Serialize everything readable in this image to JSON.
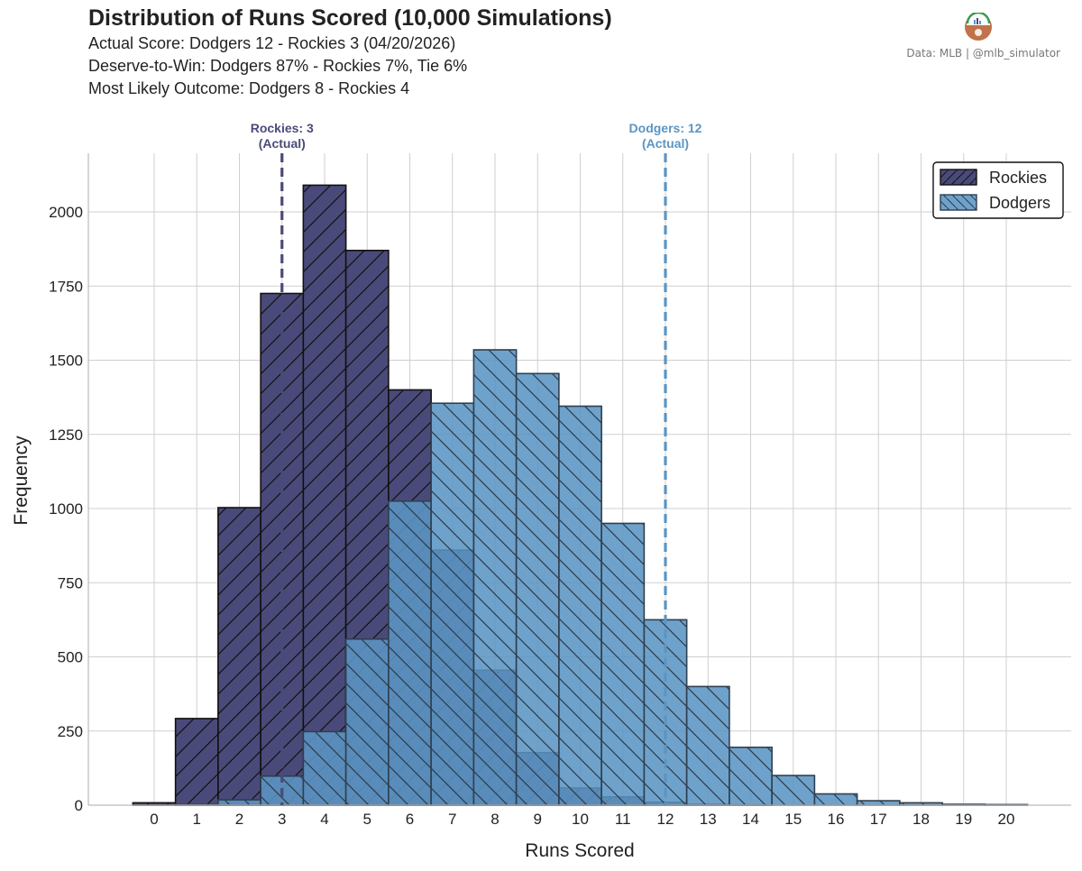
{
  "header": {
    "title": "Distribution of Runs Scored (10,000 Simulations)",
    "line1": "Actual Score: Dodgers 12 - Rockies 3  (04/20/2026)",
    "line2": "Deserve-to-Win: Dodgers 87% - Rockies 7%, Tie 6%",
    "line3": "Most Likely Outcome: Dodgers 8 - Rockies 4",
    "credit": "Data: MLB  |  @mlb_simulator"
  },
  "chart_data": {
    "type": "bar",
    "xlabel": "Runs Scored",
    "ylabel": "Frequency",
    "categories": [
      0,
      1,
      2,
      3,
      4,
      5,
      6,
      7,
      8,
      9,
      10,
      11,
      12,
      13,
      14,
      15,
      16,
      17,
      18,
      19,
      20
    ],
    "ylim": [
      0,
      2200
    ],
    "yticks": [
      0,
      250,
      500,
      750,
      1000,
      1250,
      1500,
      1750,
      2000
    ],
    "grid": true,
    "legend": "top-right",
    "series": [
      {
        "name": "Rockies",
        "color": "#4a4a7a",
        "hatch": "forward-diagonal",
        "values": [
          8,
          292,
          1003,
          1725,
          2090,
          1870,
          1400,
          860,
          455,
          177,
          58,
          28,
          10,
          3,
          1,
          0,
          0,
          0,
          0,
          0,
          0
        ]
      },
      {
        "name": "Dodgers",
        "color": "#5b95c3",
        "hatch": "back-diagonal",
        "values": [
          0,
          2,
          18,
          98,
          248,
          560,
          1025,
          1355,
          1535,
          1455,
          1345,
          950,
          625,
          400,
          195,
          100,
          38,
          15,
          8,
          3,
          2
        ]
      }
    ],
    "annotations": [
      {
        "label": "Rockies: 3",
        "sublabel": "(Actual)",
        "x": 3,
        "color": "#4a4a7a"
      },
      {
        "label": "Dodgers: 12",
        "sublabel": "(Actual)",
        "x": 12,
        "color": "#5b95c3"
      }
    ]
  }
}
